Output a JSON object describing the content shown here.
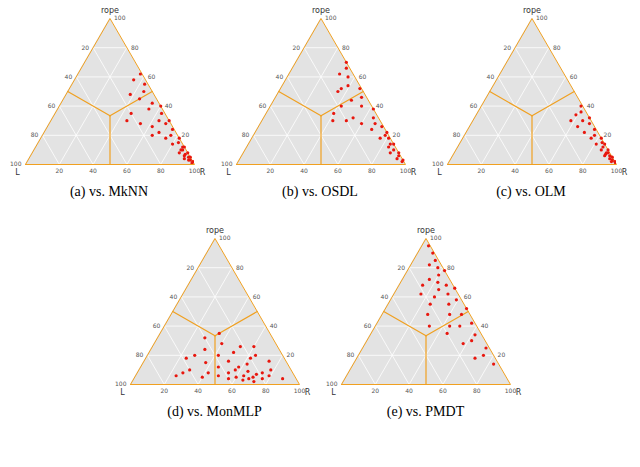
{
  "chart_data": [
    {
      "type": "ternary",
      "title": "(a) vs. MkNN",
      "axes": [
        "L",
        "rope",
        "R"
      ],
      "ticks": [
        20,
        40,
        60,
        80,
        100
      ],
      "grid": true,
      "color": "#e8170e",
      "points": [
        [
          0,
          2,
          98
        ],
        [
          1,
          5,
          94
        ],
        [
          2,
          3,
          95
        ],
        [
          0,
          8,
          92
        ],
        [
          3,
          10,
          87
        ],
        [
          1,
          12,
          87
        ],
        [
          5,
          8,
          87
        ],
        [
          2,
          15,
          83
        ],
        [
          0,
          18,
          82
        ],
        [
          6,
          14,
          80
        ],
        [
          4,
          20,
          76
        ],
        [
          1,
          24,
          75
        ],
        [
          8,
          18,
          74
        ],
        [
          3,
          28,
          69
        ],
        [
          10,
          22,
          68
        ],
        [
          0,
          30,
          70
        ],
        [
          6,
          30,
          64
        ],
        [
          12,
          26,
          62
        ],
        [
          2,
          35,
          63
        ],
        [
          15,
          20,
          65
        ],
        [
          8,
          38,
          54
        ],
        [
          4,
          42,
          54
        ],
        [
          18,
          28,
          54
        ],
        [
          0,
          40,
          60
        ],
        [
          10,
          45,
          45
        ],
        [
          5,
          50,
          45
        ],
        [
          20,
          35,
          45
        ],
        [
          2,
          55,
          43
        ],
        [
          14,
          48,
          38
        ],
        [
          7,
          58,
          35
        ],
        [
          25,
          30,
          45
        ],
        [
          1,
          62,
          37
        ],
        [
          0,
          5,
          95
        ],
        [
          1,
          3,
          96
        ],
        [
          2,
          7,
          91
        ],
        [
          0,
          12,
          88
        ],
        [
          3,
          6,
          91
        ],
        [
          4,
          4,
          92
        ],
        [
          1,
          1,
          98
        ],
        [
          2,
          10,
          88
        ]
      ]
    },
    {
      "type": "ternary",
      "title": "(b) vs. OSDL",
      "axes": [
        "L",
        "rope",
        "R"
      ],
      "ticks": [
        20,
        40,
        60,
        80,
        100
      ],
      "grid": true,
      "color": "#e8170e",
      "points": [
        [
          0,
          3,
          97
        ],
        [
          1,
          6,
          93
        ],
        [
          2,
          10,
          88
        ],
        [
          0,
          14,
          86
        ],
        [
          4,
          12,
          84
        ],
        [
          2,
          20,
          78
        ],
        [
          6,
          18,
          76
        ],
        [
          1,
          26,
          73
        ],
        [
          8,
          24,
          68
        ],
        [
          3,
          32,
          65
        ],
        [
          12,
          28,
          60
        ],
        [
          0,
          38,
          62
        ],
        [
          6,
          40,
          54
        ],
        [
          15,
          32,
          53
        ],
        [
          3,
          46,
          51
        ],
        [
          10,
          44,
          46
        ],
        [
          20,
          30,
          50
        ],
        [
          1,
          52,
          47
        ],
        [
          7,
          54,
          39
        ],
        [
          18,
          40,
          42
        ],
        [
          4,
          60,
          36
        ],
        [
          12,
          52,
          36
        ],
        [
          25,
          35,
          40
        ],
        [
          2,
          66,
          32
        ],
        [
          8,
          62,
          30
        ],
        [
          0,
          70,
          30
        ],
        [
          28,
          30,
          42
        ],
        [
          15,
          50,
          35
        ],
        [
          1,
          2,
          97
        ],
        [
          0,
          8,
          92
        ],
        [
          3,
          4,
          93
        ],
        [
          2,
          14,
          84
        ],
        [
          5,
          8,
          87
        ],
        [
          1,
          18,
          81
        ],
        [
          0,
          22,
          78
        ],
        [
          4,
          28,
          68
        ]
      ]
    },
    {
      "type": "ternary",
      "title": "(c) vs. OLM",
      "axes": [
        "L",
        "rope",
        "R"
      ],
      "ticks": [
        20,
        40,
        60,
        80,
        100
      ],
      "grid": true,
      "color": "#e8170e",
      "points": [
        [
          0,
          1,
          99
        ],
        [
          1,
          3,
          96
        ],
        [
          0,
          5,
          95
        ],
        [
          2,
          4,
          94
        ],
        [
          1,
          8,
          91
        ],
        [
          3,
          7,
          90
        ],
        [
          0,
          10,
          90
        ],
        [
          2,
          12,
          86
        ],
        [
          4,
          10,
          86
        ],
        [
          1,
          15,
          84
        ],
        [
          5,
          14,
          81
        ],
        [
          0,
          18,
          82
        ],
        [
          3,
          20,
          77
        ],
        [
          6,
          18,
          76
        ],
        [
          1,
          24,
          75
        ],
        [
          8,
          22,
          70
        ],
        [
          2,
          28,
          70
        ],
        [
          5,
          30,
          65
        ],
        [
          0,
          32,
          68
        ],
        [
          10,
          26,
          64
        ],
        [
          3,
          36,
          61
        ],
        [
          7,
          34,
          59
        ],
        [
          1,
          40,
          59
        ],
        [
          12,
          30,
          58
        ],
        [
          0,
          2,
          98
        ],
        [
          2,
          2,
          96
        ],
        [
          1,
          6,
          93
        ],
        [
          0,
          14,
          86
        ],
        [
          2,
          8,
          90
        ],
        [
          4,
          6,
          90
        ]
      ]
    },
    {
      "type": "ternary",
      "title": "(d) vs. MonMLP",
      "axes": [
        "L",
        "rope",
        "R"
      ],
      "ticks": [
        20,
        40,
        60,
        80,
        100
      ],
      "grid": true,
      "color": "#e8170e",
      "points": [
        [
          25,
          5,
          70
        ],
        [
          28,
          4,
          68
        ],
        [
          30,
          6,
          64
        ],
        [
          22,
          7,
          71
        ],
        [
          32,
          3,
          65
        ],
        [
          26,
          9,
          65
        ],
        [
          35,
          5,
          60
        ],
        [
          20,
          4,
          76
        ],
        [
          18,
          8,
          74
        ],
        [
          38,
          8,
          54
        ],
        [
          40,
          4,
          56
        ],
        [
          30,
          12,
          58
        ],
        [
          24,
          14,
          62
        ],
        [
          15,
          6,
          79
        ],
        [
          45,
          6,
          49
        ],
        [
          42,
          12,
          46
        ],
        [
          34,
          16,
          50
        ],
        [
          20,
          18,
          62
        ],
        [
          12,
          10,
          78
        ],
        [
          50,
          8,
          42
        ],
        [
          48,
          15,
          37
        ],
        [
          38,
          20,
          42
        ],
        [
          28,
          22,
          50
        ],
        [
          16,
          20,
          64
        ],
        [
          55,
          5,
          40
        ],
        [
          60,
          10,
          30
        ],
        [
          52,
          20,
          28
        ],
        [
          44,
          24,
          32
        ],
        [
          32,
          28,
          40
        ],
        [
          22,
          26,
          52
        ],
        [
          10,
          16,
          74
        ],
        [
          65,
          8,
          27
        ],
        [
          58,
          18,
          24
        ],
        [
          40,
          32,
          28
        ],
        [
          30,
          35,
          35
        ],
        [
          70,
          6,
          24
        ],
        [
          8,
          4,
          88
        ],
        [
          14,
          26,
          60
        ],
        [
          26,
          2,
          72
        ],
        [
          33,
          10,
          57
        ]
      ]
    },
    {
      "type": "ternary",
      "title": "(e) vs. PMDT",
      "axes": [
        "L",
        "rope",
        "R"
      ],
      "ticks": [
        20,
        40,
        60,
        80,
        100
      ],
      "grid": true,
      "color": "#e8170e",
      "points": [
        [
          5,
          75,
          20
        ],
        [
          8,
          70,
          22
        ],
        [
          3,
          80,
          17
        ],
        [
          10,
          65,
          25
        ],
        [
          6,
          62,
          32
        ],
        [
          2,
          85,
          13
        ],
        [
          12,
          72,
          16
        ],
        [
          4,
          68,
          28
        ],
        [
          0,
          78,
          22
        ],
        [
          15,
          60,
          25
        ],
        [
          9,
          55,
          36
        ],
        [
          3,
          58,
          39
        ],
        [
          18,
          68,
          14
        ],
        [
          1,
          90,
          9
        ],
        [
          7,
          82,
          11
        ],
        [
          20,
          55,
          25
        ],
        [
          12,
          48,
          40
        ],
        [
          5,
          48,
          47
        ],
        [
          2,
          42,
          56
        ],
        [
          10,
          40,
          50
        ],
        [
          25,
          48,
          27
        ],
        [
          16,
          40,
          44
        ],
        [
          4,
          34,
          62
        ],
        [
          8,
          30,
          62
        ],
        [
          20,
          35,
          45
        ],
        [
          14,
          28,
          58
        ],
        [
          2,
          25,
          73
        ],
        [
          6,
          20,
          74
        ],
        [
          12,
          18,
          70
        ],
        [
          3,
          14,
          83
        ],
        [
          1,
          95,
          4
        ],
        [
          22,
          62,
          16
        ],
        [
          0,
          66,
          34
        ],
        [
          28,
          40,
          32
        ],
        [
          0,
          52,
          48
        ]
      ]
    }
  ]
}
